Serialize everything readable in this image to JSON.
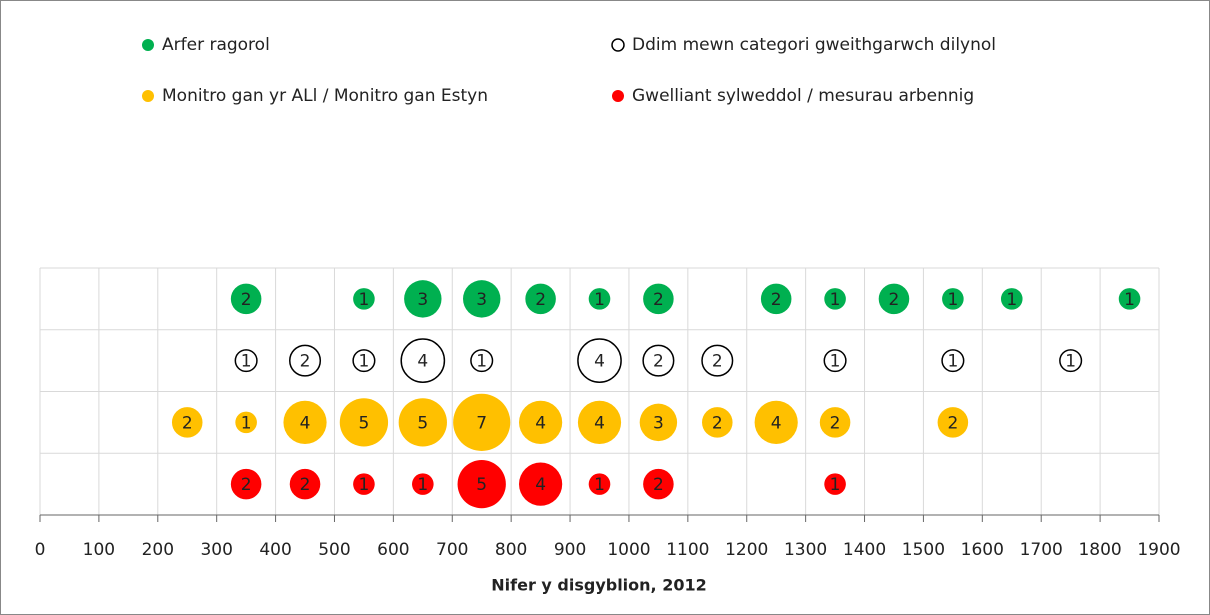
{
  "chart_data": {
    "type": "bubble",
    "x_label": "Nifer y disgyblion, 2012",
    "xlim": [
      0,
      1900
    ],
    "xticks": [
      0,
      100,
      200,
      300,
      400,
      500,
      600,
      700,
      800,
      900,
      1000,
      1100,
      1200,
      1300,
      1400,
      1500,
      1600,
      1700,
      1800,
      1900
    ],
    "ylim": [
      0,
      4
    ],
    "yticks": [
      0,
      1,
      2,
      3,
      4
    ],
    "grid": true,
    "legend": "top",
    "series": [
      {
        "name": "Arfer ragorol",
        "color": "#00b050",
        "filled": true,
        "x": [
          350,
          550,
          650,
          750,
          850,
          950,
          1050,
          1250,
          1350,
          1450,
          1550,
          1650,
          1850
        ],
        "values": [
          3.5,
          3.5,
          3.5,
          3.5,
          3.5,
          3.5,
          3.5,
          3.5,
          3.5,
          3.5,
          3.5,
          3.5,
          3.5
        ],
        "sizes": [
          2,
          1,
          3,
          3,
          2,
          1,
          2,
          2,
          1,
          2,
          1,
          1,
          1
        ]
      },
      {
        "name": "Ddim mewn categori gweithgarwch dilynol",
        "color": "#000000",
        "filled": false,
        "x": [
          350,
          450,
          550,
          650,
          750,
          950,
          1050,
          1150,
          1350,
          1550,
          1750
        ],
        "values": [
          2.5,
          2.5,
          2.5,
          2.5,
          2.5,
          2.5,
          2.5,
          2.5,
          2.5,
          2.5,
          2.5
        ],
        "sizes": [
          1,
          2,
          1,
          4,
          1,
          4,
          2,
          2,
          1,
          1,
          1
        ]
      },
      {
        "name": "Monitro gan yr ALl / Monitro gan Estyn",
        "color": "#ffc000",
        "filled": true,
        "x": [
          250,
          350,
          450,
          550,
          650,
          750,
          850,
          950,
          1050,
          1150,
          1250,
          1350,
          1550
        ],
        "values": [
          1.5,
          1.5,
          1.5,
          1.5,
          1.5,
          1.5,
          1.5,
          1.5,
          1.5,
          1.5,
          1.5,
          1.5,
          1.5
        ],
        "sizes": [
          2,
          1,
          4,
          5,
          5,
          7,
          4,
          4,
          3,
          2,
          4,
          2,
          2
        ]
      },
      {
        "name": "Gwelliant sylweddol / mesurau arbennig",
        "color": "#ff0000",
        "filled": true,
        "x": [
          350,
          450,
          550,
          650,
          750,
          850,
          950,
          1050,
          1350
        ],
        "values": [
          0.5,
          0.5,
          0.5,
          0.5,
          0.5,
          0.5,
          0.5,
          0.5,
          0.5
        ],
        "sizes": [
          2,
          2,
          1,
          1,
          5,
          4,
          1,
          2,
          1
        ]
      }
    ]
  }
}
